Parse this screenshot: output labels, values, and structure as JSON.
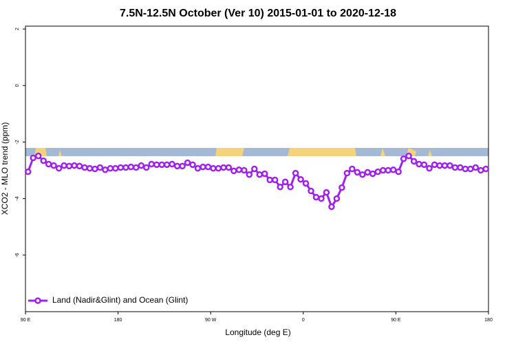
{
  "chart_data": {
    "type": "line",
    "title": "7.5N-12.5N October (Ver 10)   2015-01-01 to 2020-12-18",
    "x_label": "Longitude (deg E)",
    "y_label": "XCO2 - MLO trend (ppm)",
    "x": [
      92.5,
      97.5,
      102.5,
      107.5,
      112.5,
      117.5,
      122.5,
      127.5,
      132.5,
      137.5,
      142.5,
      147.5,
      152.5,
      157.5,
      162.5,
      167.5,
      172.5,
      177.5,
      182.5,
      187.5,
      192.5,
      197.5,
      202.5,
      207.5,
      212.5,
      217.5,
      222.5,
      227.5,
      232.5,
      237.5,
      242.5,
      247.5,
      252.5,
      257.5,
      262.5,
      267.5,
      272.5,
      277.5,
      282.5,
      287.5,
      292.5,
      297.5,
      302.5,
      307.5,
      312.5,
      317.5,
      322.5,
      327.5,
      332.5,
      337.5,
      342.5,
      347.5,
      352.5,
      357.5,
      362.5,
      367.5,
      372.5,
      377.5,
      382.5,
      387.5,
      392.5,
      397.5,
      402.5,
      407.5,
      412.5,
      417.5,
      422.5,
      427.5,
      432.5,
      437.5,
      442.5,
      447.5,
      452.5,
      457.5,
      462.5,
      467.5,
      472.5,
      477.5,
      482.5,
      487.5,
      492.5,
      497.5,
      502.5,
      507.5,
      512.5,
      517.5,
      522.5,
      527.5,
      532.5,
      537.5
    ],
    "series": [
      {
        "name": "Land (Nadir&Glint) and Ocean (Glint)",
        "color": "#a020f0",
        "values": [
          -3.05,
          -2.56,
          -2.49,
          -2.66,
          -2.78,
          -2.83,
          -2.93,
          -2.83,
          -2.85,
          -2.83,
          -2.85,
          -2.9,
          -2.93,
          -2.95,
          -2.9,
          -2.98,
          -2.93,
          -2.93,
          -2.9,
          -2.9,
          -2.88,
          -2.9,
          -2.83,
          -2.9,
          -2.78,
          -2.8,
          -2.8,
          -2.8,
          -2.78,
          -2.85,
          -2.85,
          -2.73,
          -2.8,
          -2.93,
          -2.88,
          -2.88,
          -2.93,
          -2.93,
          -2.9,
          -2.9,
          -3.02,
          -2.98,
          -3.0,
          -3.15,
          -2.95,
          -3.15,
          -3.12,
          -3.34,
          -3.34,
          -3.59,
          -3.41,
          -3.59,
          -3.1,
          -3.32,
          -3.46,
          -3.73,
          -3.95,
          -4.0,
          -3.78,
          -4.29,
          -4.0,
          -3.61,
          -3.1,
          -2.95,
          -3.07,
          -3.15,
          -3.07,
          -3.12,
          -3.05,
          -3.0,
          -3.0,
          -2.98,
          -3.05,
          -2.59,
          -2.49,
          -2.68,
          -2.78,
          -2.8,
          -2.93,
          -2.8,
          -2.83,
          -2.83,
          -2.83,
          -2.9,
          -2.9,
          -2.95,
          -2.95,
          -2.9,
          -3.0,
          -2.95
        ]
      }
    ],
    "xlim": [
      90,
      540
    ],
    "xticks": [
      {
        "value": 90,
        "label": "90 E"
      },
      180,
      {
        "value": 270,
        "label": "90 W"
      },
      {
        "value": 360,
        "label": "0"
      },
      {
        "value": 450,
        "label": "90 E"
      },
      {
        "value": 540,
        "label": "180"
      }
    ],
    "ylim": [
      -8.0,
      2.1
    ],
    "yticks": [
      2,
      0,
      -2,
      -4,
      -6
    ],
    "legend": "bottom-left",
    "grid": false
  }
}
